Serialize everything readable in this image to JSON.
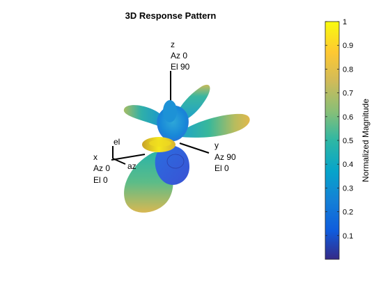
{
  "figure": {
    "title": "3D Response Pattern"
  },
  "axes_labels": {
    "z": [
      "z",
      "Az 0",
      "El 90"
    ],
    "x": [
      "x",
      "Az 0",
      "El 0"
    ],
    "y": [
      "y",
      "Az 90",
      "El 0"
    ],
    "az": "az",
    "el": "el"
  },
  "colorbar": {
    "label": "Normalized Magnitude",
    "ticks": [
      "0.1",
      "0.2",
      "0.3",
      "0.4",
      "0.5",
      "0.6",
      "0.7",
      "0.8",
      "0.9",
      "1"
    ],
    "range": [
      0,
      1
    ],
    "colormap": "parula",
    "colors": [
      "#352a87",
      "#0f5cdd",
      "#1481d6",
      "#06a4ca",
      "#2eb7a4",
      "#87bf77",
      "#d1bb59",
      "#fec832",
      "#f9fb0e"
    ]
  },
  "chart_data": {
    "type": "3d-surface",
    "title": "3D Response Pattern",
    "colorbar_label": "Normalized Magnitude",
    "colorbar_range": [
      0,
      1
    ],
    "colorbar_ticks": [
      0.1,
      0.2,
      0.3,
      0.4,
      0.5,
      0.6,
      0.7,
      0.8,
      0.9,
      1
    ],
    "axis_annotations": [
      {
        "axis": "z",
        "azimuth": 0,
        "elevation": 90
      },
      {
        "axis": "x",
        "azimuth": 0,
        "elevation": 0
      },
      {
        "axis": "y",
        "azimuth": 90,
        "elevation": 0
      }
    ]
  }
}
